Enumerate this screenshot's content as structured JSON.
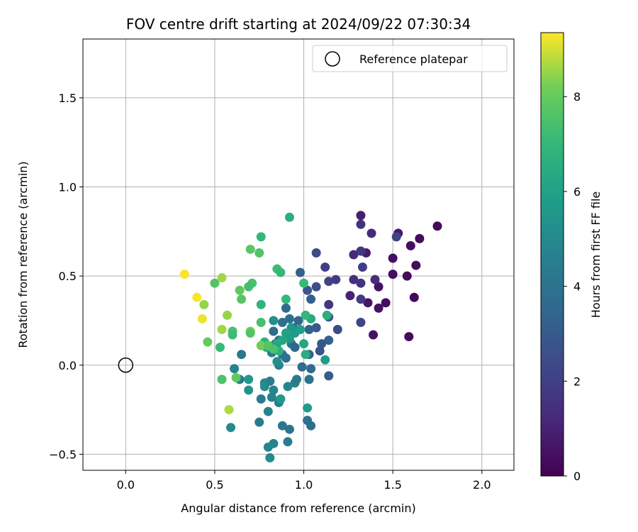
{
  "chart_data": {
    "type": "scatter",
    "title": "FOV centre drift starting at 2024/09/22 07:30:34",
    "xlabel": "Angular distance from reference (arcmin)",
    "ylabel": "Rotation from reference (arcmin)",
    "xlim": [
      -0.24,
      2.18
    ],
    "ylim": [
      -0.59,
      1.83
    ],
    "xticks": [
      0.0,
      0.5,
      1.0,
      1.5,
      2.0
    ],
    "xtick_labels": [
      "0.0",
      "0.5",
      "1.0",
      "1.5",
      "2.0"
    ],
    "yticks": [
      -0.5,
      0.0,
      0.5,
      1.0,
      1.5
    ],
    "ytick_labels": [
      "−0.5",
      "0.0",
      "0.5",
      "1.0",
      "1.5"
    ],
    "grid": true,
    "legend": {
      "location": "top-right",
      "entries": [
        "Reference platepar"
      ]
    },
    "reference_point": {
      "label": "Reference platepar",
      "x": 0.0,
      "y": 0.0
    },
    "colorbar": {
      "label": "Hours from first FF file",
      "colormap": "viridis",
      "range": [
        0,
        9.35
      ],
      "ticks": [
        0,
        2,
        4,
        6,
        8
      ],
      "tick_labels": [
        "0",
        "2",
        "4",
        "6",
        "8"
      ]
    },
    "points": [
      {
        "x": 1.75,
        "y": 0.78,
        "h": 0.2
      },
      {
        "x": 1.65,
        "y": 0.71,
        "h": 0.3
      },
      {
        "x": 1.6,
        "y": 0.67,
        "h": 0.4
      },
      {
        "x": 1.53,
        "y": 0.74,
        "h": 0.7
      },
      {
        "x": 1.63,
        "y": 0.56,
        "h": 0.3
      },
      {
        "x": 1.5,
        "y": 0.6,
        "h": 0.4
      },
      {
        "x": 1.58,
        "y": 0.5,
        "h": 0.3
      },
      {
        "x": 1.62,
        "y": 0.38,
        "h": 0.2
      },
      {
        "x": 1.5,
        "y": 0.51,
        "h": 0.4
      },
      {
        "x": 1.42,
        "y": 0.44,
        "h": 0.5
      },
      {
        "x": 1.46,
        "y": 0.35,
        "h": 0.4
      },
      {
        "x": 1.42,
        "y": 0.32,
        "h": 0.5
      },
      {
        "x": 1.59,
        "y": 0.16,
        "h": 0.3
      },
      {
        "x": 1.39,
        "y": 0.17,
        "h": 0.5
      },
      {
        "x": 1.36,
        "y": 0.35,
        "h": 0.6
      },
      {
        "x": 1.32,
        "y": 0.84,
        "h": 0.9
      },
      {
        "x": 1.38,
        "y": 0.74,
        "h": 1.3
      },
      {
        "x": 1.32,
        "y": 0.79,
        "h": 1.5
      },
      {
        "x": 1.35,
        "y": 0.63,
        "h": 0.8
      },
      {
        "x": 1.28,
        "y": 0.62,
        "h": 1.2
      },
      {
        "x": 1.32,
        "y": 0.64,
        "h": 1.7
      },
      {
        "x": 1.33,
        "y": 0.55,
        "h": 1.9
      },
      {
        "x": 1.52,
        "y": 0.72,
        "h": 2.1
      },
      {
        "x": 1.28,
        "y": 0.48,
        "h": 1.4
      },
      {
        "x": 1.32,
        "y": 0.46,
        "h": 1.6
      },
      {
        "x": 1.4,
        "y": 0.48,
        "h": 1.3
      },
      {
        "x": 1.26,
        "y": 0.39,
        "h": 1.0
      },
      {
        "x": 1.32,
        "y": 0.37,
        "h": 1.8
      },
      {
        "x": 1.32,
        "y": 0.24,
        "h": 2.2
      },
      {
        "x": 1.12,
        "y": 0.55,
        "h": 2.0
      },
      {
        "x": 1.14,
        "y": 0.47,
        "h": 2.1
      },
      {
        "x": 1.18,
        "y": 0.48,
        "h": 1.9
      },
      {
        "x": 1.14,
        "y": 0.34,
        "h": 1.7
      },
      {
        "x": 1.07,
        "y": 0.63,
        "h": 2.4
      },
      {
        "x": 1.07,
        "y": 0.44,
        "h": 2.6
      },
      {
        "x": 1.02,
        "y": 0.42,
        "h": 2.8
      },
      {
        "x": 1.04,
        "y": 0.37,
        "h": 3.2
      },
      {
        "x": 1.14,
        "y": 0.27,
        "h": 3.0
      },
      {
        "x": 1.19,
        "y": 0.2,
        "h": 2.4
      },
      {
        "x": 1.14,
        "y": 0.14,
        "h": 3.3
      },
      {
        "x": 1.1,
        "y": 0.12,
        "h": 2.9
      },
      {
        "x": 1.09,
        "y": 0.08,
        "h": 2.7
      },
      {
        "x": 1.07,
        "y": 0.21,
        "h": 2.9
      },
      {
        "x": 1.03,
        "y": 0.2,
        "h": 3.4
      },
      {
        "x": 1.03,
        "y": 0.06,
        "h": 3.4
      },
      {
        "x": 1.04,
        "y": -0.02,
        "h": 3.6
      },
      {
        "x": 1.03,
        "y": -0.08,
        "h": 3.9
      },
      {
        "x": 1.14,
        "y": -0.06,
        "h": 3.1
      },
      {
        "x": 0.98,
        "y": 0.52,
        "h": 3.2
      },
      {
        "x": 0.9,
        "y": 0.32,
        "h": 3.6
      },
      {
        "x": 0.92,
        "y": 0.26,
        "h": 3.8
      },
      {
        "x": 0.97,
        "y": 0.25,
        "h": 3.5
      },
      {
        "x": 0.94,
        "y": 0.21,
        "h": 3.2
      },
      {
        "x": 0.88,
        "y": 0.24,
        "h": 3.9
      },
      {
        "x": 0.91,
        "y": 0.17,
        "h": 4.1
      },
      {
        "x": 0.83,
        "y": 0.19,
        "h": 3.7
      },
      {
        "x": 0.86,
        "y": 0.14,
        "h": 4.0
      },
      {
        "x": 0.93,
        "y": 0.12,
        "h": 4.2
      },
      {
        "x": 0.95,
        "y": 0.1,
        "h": 3.4
      },
      {
        "x": 0.84,
        "y": 0.12,
        "h": 4.4
      },
      {
        "x": 0.8,
        "y": 0.1,
        "h": 4.3
      },
      {
        "x": 0.82,
        "y": 0.07,
        "h": 4.3
      },
      {
        "x": 0.88,
        "y": 0.06,
        "h": 4.1
      },
      {
        "x": 0.9,
        "y": 0.04,
        "h": 3.9
      },
      {
        "x": 0.99,
        "y": -0.01,
        "h": 3.7
      },
      {
        "x": 0.86,
        "y": 0.0,
        "h": 4.6
      },
      {
        "x": 0.65,
        "y": 0.06,
        "h": 4.2
      },
      {
        "x": 0.61,
        "y": -0.02,
        "h": 4.8
      },
      {
        "x": 0.64,
        "y": -0.08,
        "h": 4.4
      },
      {
        "x": 0.78,
        "y": -0.1,
        "h": 4.9
      },
      {
        "x": 0.78,
        "y": -0.12,
        "h": 5.1
      },
      {
        "x": 0.81,
        "y": -0.09,
        "h": 4.5
      },
      {
        "x": 0.83,
        "y": -0.14,
        "h": 4.8
      },
      {
        "x": 0.76,
        "y": -0.19,
        "h": 4.4
      },
      {
        "x": 0.82,
        "y": -0.18,
        "h": 4.7
      },
      {
        "x": 0.86,
        "y": -0.21,
        "h": 4.6
      },
      {
        "x": 0.91,
        "y": -0.12,
        "h": 4.9
      },
      {
        "x": 0.95,
        "y": -0.1,
        "h": 4.5
      },
      {
        "x": 0.96,
        "y": -0.08,
        "h": 4.3
      },
      {
        "x": 0.8,
        "y": -0.26,
        "h": 4.7
      },
      {
        "x": 0.75,
        "y": -0.32,
        "h": 4.3
      },
      {
        "x": 0.88,
        "y": -0.34,
        "h": 4.2
      },
      {
        "x": 0.92,
        "y": -0.36,
        "h": 4.1
      },
      {
        "x": 1.02,
        "y": -0.31,
        "h": 4.0
      },
      {
        "x": 1.04,
        "y": -0.34,
        "h": 3.8
      },
      {
        "x": 0.83,
        "y": -0.44,
        "h": 4.7
      },
      {
        "x": 0.8,
        "y": -0.46,
        "h": 4.9
      },
      {
        "x": 0.91,
        "y": -0.43,
        "h": 4.4
      },
      {
        "x": 0.81,
        "y": -0.52,
        "h": 5.0
      },
      {
        "x": 0.59,
        "y": -0.35,
        "h": 5.0
      },
      {
        "x": 0.69,
        "y": -0.08,
        "h": 5.6
      },
      {
        "x": 0.69,
        "y": -0.14,
        "h": 5.4
      },
      {
        "x": 0.87,
        "y": -0.19,
        "h": 5.6
      },
      {
        "x": 1.02,
        "y": -0.24,
        "h": 5.8
      },
      {
        "x": 1.12,
        "y": 0.03,
        "h": 5.7
      },
      {
        "x": 0.85,
        "y": 0.02,
        "h": 5.2
      },
      {
        "x": 0.83,
        "y": 0.25,
        "h": 5.3
      },
      {
        "x": 0.93,
        "y": 0.21,
        "h": 5.5
      },
      {
        "x": 0.95,
        "y": 0.18,
        "h": 5.7
      },
      {
        "x": 0.98,
        "y": 0.2,
        "h": 5.9
      },
      {
        "x": 0.9,
        "y": 0.18,
        "h": 6.0
      },
      {
        "x": 0.92,
        "y": 0.15,
        "h": 5.8
      },
      {
        "x": 0.88,
        "y": 0.14,
        "h": 6.2
      },
      {
        "x": 0.85,
        "y": 0.12,
        "h": 6.4
      },
      {
        "x": 0.84,
        "y": 0.1,
        "h": 6.0
      },
      {
        "x": 0.86,
        "y": 0.08,
        "h": 6.7
      },
      {
        "x": 0.79,
        "y": 0.1,
        "h": 6.5
      },
      {
        "x": 0.78,
        "y": 0.13,
        "h": 6.8
      },
      {
        "x": 1.0,
        "y": 0.12,
        "h": 6.2
      },
      {
        "x": 1.01,
        "y": 0.06,
        "h": 6.6
      },
      {
        "x": 1.04,
        "y": 0.26,
        "h": 6.3
      },
      {
        "x": 1.01,
        "y": 0.28,
        "h": 6.9
      },
      {
        "x": 1.13,
        "y": 0.28,
        "h": 6.6
      },
      {
        "x": 0.92,
        "y": 0.83,
        "h": 6.6
      },
      {
        "x": 0.76,
        "y": 0.34,
        "h": 6.8
      },
      {
        "x": 0.9,
        "y": 0.37,
        "h": 7.0
      },
      {
        "x": 1.0,
        "y": 0.46,
        "h": 7.1
      },
      {
        "x": 0.85,
        "y": 0.54,
        "h": 7.2
      },
      {
        "x": 0.87,
        "y": 0.52,
        "h": 7.0
      },
      {
        "x": 0.76,
        "y": 0.72,
        "h": 7.0
      },
      {
        "x": 0.75,
        "y": 0.63,
        "h": 7.6
      },
      {
        "x": 0.7,
        "y": 0.65,
        "h": 7.8
      },
      {
        "x": 0.71,
        "y": 0.46,
        "h": 7.5
      },
      {
        "x": 0.69,
        "y": 0.44,
        "h": 7.3
      },
      {
        "x": 0.64,
        "y": 0.42,
        "h": 7.9
      },
      {
        "x": 0.65,
        "y": 0.37,
        "h": 7.7
      },
      {
        "x": 0.5,
        "y": 0.46,
        "h": 7.6
      },
      {
        "x": 0.54,
        "y": 0.49,
        "h": 8.6
      },
      {
        "x": 0.57,
        "y": 0.28,
        "h": 8.5
      },
      {
        "x": 0.54,
        "y": 0.2,
        "h": 8.6
      },
      {
        "x": 0.6,
        "y": 0.19,
        "h": 7.4
      },
      {
        "x": 0.6,
        "y": 0.17,
        "h": 7.2
      },
      {
        "x": 0.7,
        "y": 0.19,
        "h": 8.3
      },
      {
        "x": 0.7,
        "y": 0.18,
        "h": 7.6
      },
      {
        "x": 0.76,
        "y": 0.24,
        "h": 7.4
      },
      {
        "x": 0.53,
        "y": 0.1,
        "h": 7.1
      },
      {
        "x": 0.46,
        "y": 0.13,
        "h": 8.0
      },
      {
        "x": 0.76,
        "y": 0.11,
        "h": 8.2
      },
      {
        "x": 0.8,
        "y": 0.11,
        "h": 7.7
      },
      {
        "x": 0.83,
        "y": 0.09,
        "h": 7.5
      },
      {
        "x": 0.54,
        "y": -0.08,
        "h": 7.5
      },
      {
        "x": 0.62,
        "y": -0.07,
        "h": 7.9
      },
      {
        "x": 0.58,
        "y": -0.25,
        "h": 8.7
      },
      {
        "x": 0.44,
        "y": 0.34,
        "h": 8.5
      },
      {
        "x": 0.4,
        "y": 0.38,
        "h": 9.3
      },
      {
        "x": 0.43,
        "y": 0.26,
        "h": 9.2
      },
      {
        "x": 0.33,
        "y": 0.51,
        "h": 9.3
      }
    ]
  }
}
